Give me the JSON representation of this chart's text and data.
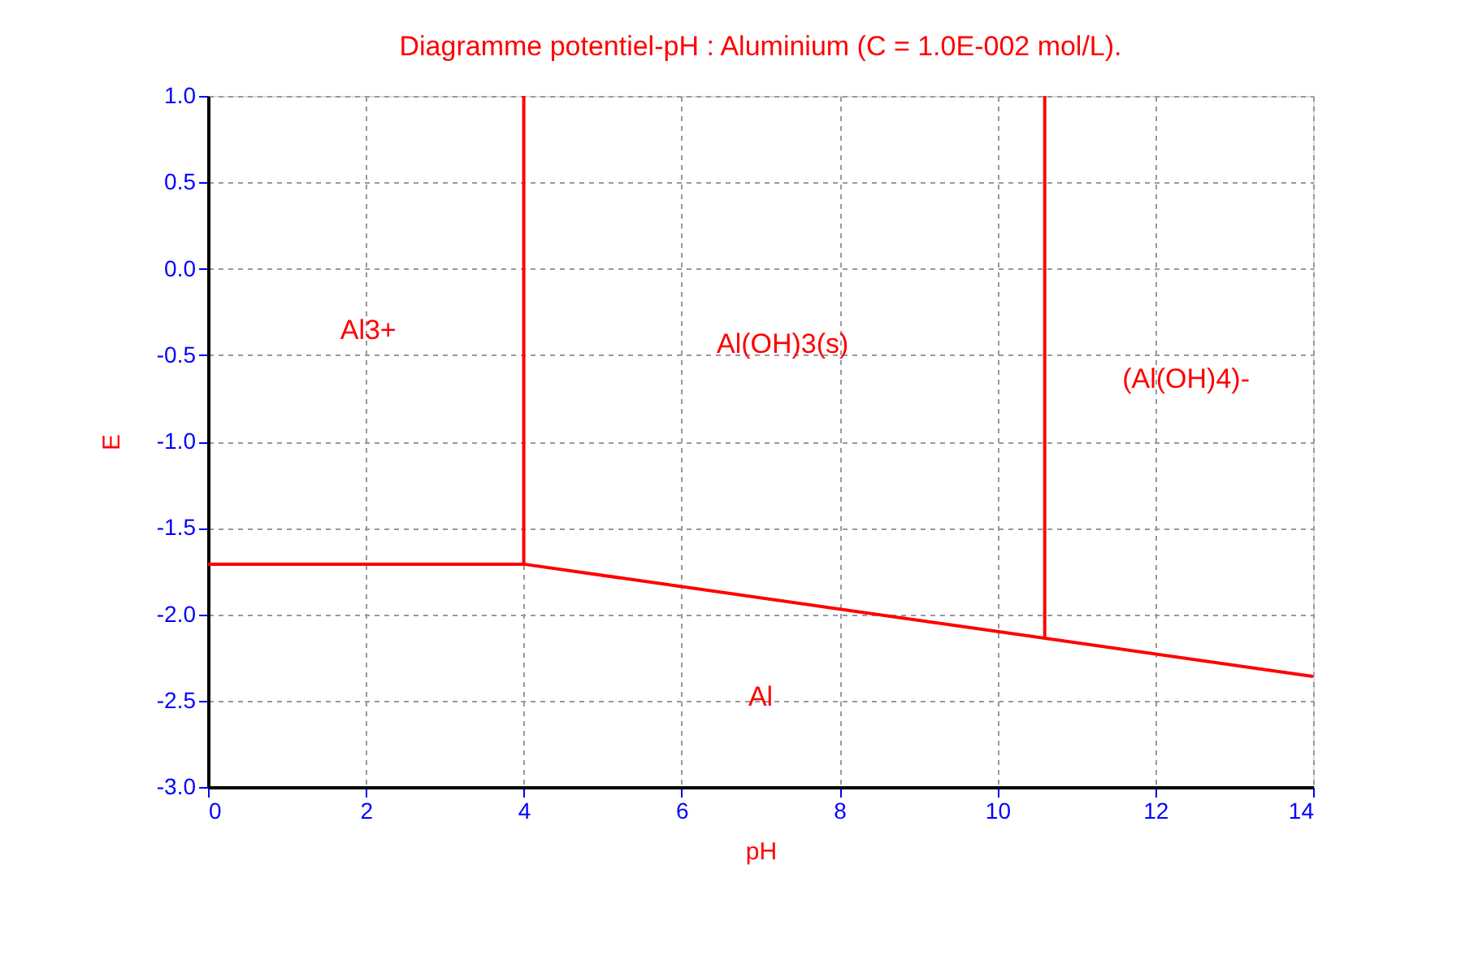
{
  "chart_data": {
    "type": "line",
    "title": "Diagramme potentiel-pH : Aluminium (C = 1.0E-002 mol/L).",
    "xlabel": "pH",
    "ylabel": "E",
    "xlim": [
      0,
      14
    ],
    "xticks": [
      0,
      2,
      4,
      6,
      8,
      10,
      12,
      14
    ],
    "ylim": [
      -3.0,
      1.0
    ],
    "yticks": [
      {
        "value": -3.0,
        "label": "-3.0"
      },
      {
        "value": -2.5,
        "label": "-2.5"
      },
      {
        "value": -2.0,
        "label": "-2.0"
      },
      {
        "value": -1.5,
        "label": "-1.5"
      },
      {
        "value": -1.0,
        "label": "-1.0"
      },
      {
        "value": -0.5,
        "label": "-0.5"
      },
      {
        "value": 0.0,
        "label": "0.0"
      },
      {
        "value": 0.5,
        "label": "0.5"
      },
      {
        "value": 1.0,
        "label": "1.0"
      }
    ],
    "grid": true,
    "legend": false,
    "marker": "none",
    "line_style": "solid",
    "series": [
      {
        "color": "#ff0000",
        "x": [
          0,
          4,
          14
        ],
        "values": [
          -1.71,
          -1.71,
          -2.36
        ]
      },
      {
        "color": "#ff0000",
        "x": [
          4,
          4
        ],
        "values": [
          -1.71,
          1.0
        ]
      },
      {
        "color": "#ff0000",
        "x": [
          10.6,
          10.6
        ],
        "values": [
          -2.14,
          1.0
        ]
      }
    ],
    "annotations": [
      "Al3+",
      "Al(OH)3(s)",
      "(Al(OH)4)-",
      "Al"
    ]
  }
}
